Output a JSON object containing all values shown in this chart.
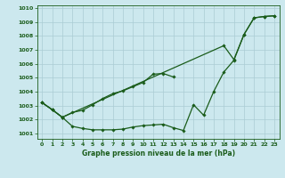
{
  "xlabel": "Graphe pression niveau de la mer (hPa)",
  "ylim": [
    1000.6,
    1010.2
  ],
  "xlim": [
    -0.5,
    23.5
  ],
  "yticks": [
    1001,
    1002,
    1003,
    1004,
    1005,
    1006,
    1007,
    1008,
    1009,
    1010
  ],
  "xticks": [
    0,
    1,
    2,
    3,
    4,
    5,
    6,
    7,
    8,
    9,
    10,
    11,
    12,
    13,
    14,
    15,
    16,
    17,
    18,
    19,
    20,
    21,
    22,
    23
  ],
  "background_color": "#cce8ee",
  "grid_color": "#aaccd4",
  "line_color": "#1a5c1a",
  "series1": [
    1003.2,
    1002.7,
    1002.15,
    1001.5,
    1001.35,
    1001.25,
    1001.25,
    1001.25,
    1001.3,
    1001.45,
    1001.55,
    1001.6,
    1001.65,
    1001.4,
    1001.2,
    1003.05,
    1002.3,
    1004.0,
    1005.4,
    1006.25,
    1008.1,
    1009.3,
    1009.4,
    1009.45
  ],
  "series2_x": [
    0,
    1,
    2,
    3,
    4,
    5,
    6,
    7,
    8,
    9,
    10,
    11,
    12,
    13
  ],
  "series2_y": [
    1003.2,
    1002.7,
    1002.15,
    1002.5,
    1002.65,
    1003.05,
    1003.5,
    1003.85,
    1004.05,
    1004.35,
    1004.65,
    1005.25,
    1005.3,
    1005.05
  ],
  "series3_x": [
    0,
    1,
    2,
    18,
    19,
    20,
    21,
    22,
    23
  ],
  "series3_y": [
    1003.2,
    1002.7,
    1002.15,
    1007.3,
    1006.3,
    1008.1,
    1009.3,
    1009.4,
    1009.45
  ]
}
